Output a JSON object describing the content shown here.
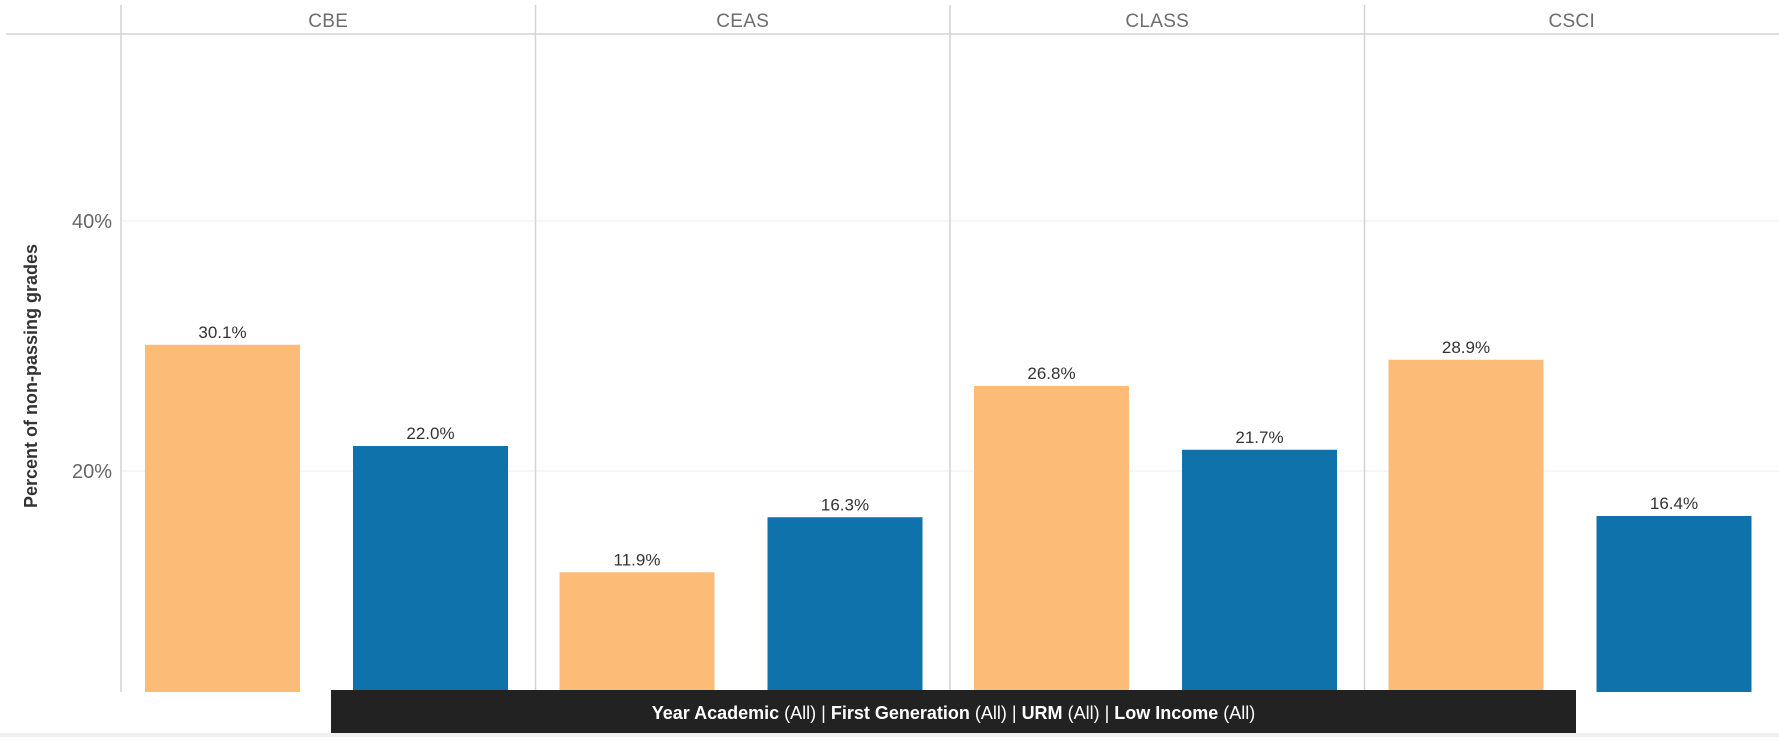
{
  "chart_data": {
    "type": "bar",
    "ylabel": "Percent of non-passing grades",
    "ylim": [
      0,
      50
    ],
    "yticks": [
      {
        "value": 20,
        "label": "20%"
      },
      {
        "value": 40,
        "label": "40%"
      }
    ],
    "grid": true,
    "panels": [
      {
        "name": "CBE",
        "bars": [
          {
            "value": 30.1,
            "label": "30.1%",
            "color": "#fdbb78"
          },
          {
            "value": 22.0,
            "label": "22.0%",
            "color": "#0f72ab"
          }
        ]
      },
      {
        "name": "CEAS",
        "bars": [
          {
            "value": 11.9,
            "label": "11.9%",
            "color": "#fdbb78"
          },
          {
            "value": 16.3,
            "label": "16.3%",
            "color": "#0f72ab"
          }
        ]
      },
      {
        "name": "CLASS",
        "bars": [
          {
            "value": 26.8,
            "label": "26.8%",
            "color": "#fdbb78"
          },
          {
            "value": 21.7,
            "label": "21.7%",
            "color": "#0f72ab"
          }
        ]
      },
      {
        "name": "CSCI",
        "bars": [
          {
            "value": 28.9,
            "label": "28.9%",
            "color": "#fdbb78"
          },
          {
            "value": 16.4,
            "label": "16.4%",
            "color": "#0f72ab"
          }
        ]
      }
    ]
  },
  "filters": [
    {
      "name": "Year Academic",
      "value": "(All)"
    },
    {
      "name": "First Generation",
      "value": "(All)"
    },
    {
      "name": "URM",
      "value": "(All)"
    },
    {
      "name": "Low Income",
      "value": "(All)"
    }
  ],
  "colors": {
    "series_a": "#fdbb78",
    "series_b": "#0f72ab",
    "filter_bar_bg": "#222222",
    "divider": "#d4d4d4",
    "grid": "#ececec"
  }
}
